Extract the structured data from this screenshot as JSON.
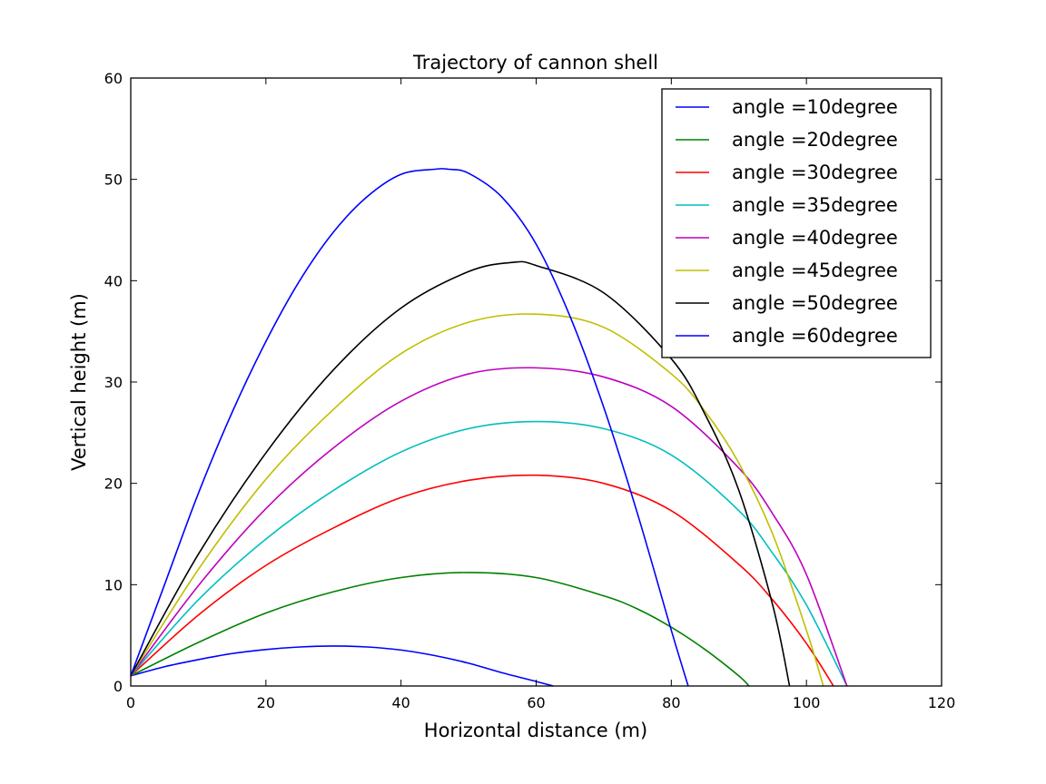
{
  "chart_data": {
    "type": "line",
    "title": "Trajectory of cannon shell",
    "xlabel": "Horizontal distance (m)",
    "ylabel": "Vertical height (m)",
    "xlim": [
      0,
      120
    ],
    "ylim": [
      0,
      60
    ],
    "xticks": [
      "0",
      "20",
      "40",
      "60",
      "80",
      "100",
      "120"
    ],
    "yticks": [
      "0",
      "10",
      "20",
      "30",
      "40",
      "50",
      "60"
    ],
    "grid": false,
    "legend_position": "top-right",
    "series": [
      {
        "name": "angle =10degree",
        "color": "#0000ff",
        "x": [
          0,
          5,
          10,
          15,
          20,
          25,
          30,
          35,
          40,
          45,
          50,
          55,
          60,
          62.5
        ],
        "y": [
          1.0,
          1.9,
          2.6,
          3.2,
          3.6,
          3.85,
          3.95,
          3.85,
          3.55,
          3.0,
          2.25,
          1.3,
          0.45,
          0
        ]
      },
      {
        "name": "angle =20degree",
        "color": "#008000",
        "x": [
          0,
          10,
          20,
          30,
          40,
          50,
          60,
          70,
          75,
          80,
          85,
          90,
          91.5
        ],
        "y": [
          1.0,
          4.3,
          7.2,
          9.3,
          10.7,
          11.2,
          10.7,
          8.9,
          7.6,
          5.8,
          3.6,
          1.0,
          0
        ]
      },
      {
        "name": "angle =30degree",
        "color": "#ff0000",
        "x": [
          0,
          10,
          20,
          30,
          40,
          50,
          60,
          70,
          80,
          90,
          95,
          100,
          104
        ],
        "y": [
          1.0,
          7.0,
          11.9,
          15.6,
          18.6,
          20.3,
          20.8,
          20.0,
          17.3,
          12.0,
          8.5,
          4.2,
          0
        ]
      },
      {
        "name": "angle =35degree",
        "color": "#00bfbf",
        "x": [
          0,
          10,
          20,
          30,
          40,
          50,
          60,
          70,
          80,
          90,
          95,
          100,
          106
        ],
        "y": [
          1.0,
          8.5,
          14.5,
          19.3,
          23.1,
          25.4,
          26.1,
          25.4,
          22.8,
          17.3,
          13.1,
          8.0,
          0
        ]
      },
      {
        "name": "angle =40degree",
        "color": "#bf00bf",
        "x": [
          0,
          10,
          20,
          30,
          40,
          50,
          60,
          70,
          80,
          90,
          95,
          100,
          106
        ],
        "y": [
          1.0,
          9.9,
          17.5,
          23.5,
          28.1,
          30.8,
          31.4,
          30.5,
          27.6,
          21.5,
          17.0,
          11.0,
          0
        ]
      },
      {
        "name": "angle =45degree",
        "color": "#bfbf00",
        "x": [
          0,
          10,
          20,
          30,
          40,
          50,
          60,
          70,
          80,
          85,
          90,
          95,
          100,
          102.5
        ],
        "y": [
          1.0,
          11.5,
          20.4,
          27.3,
          32.8,
          35.9,
          36.7,
          35.4,
          30.8,
          27.1,
          22.0,
          15.0,
          5.5,
          0
        ]
      },
      {
        "name": "angle =50degree",
        "color": "#000000",
        "x": [
          0,
          10,
          20,
          30,
          40,
          50,
          56.5,
          60,
          70,
          80,
          85,
          90,
          95,
          97.5
        ],
        "y": [
          1.0,
          13.0,
          23.0,
          31.2,
          37.3,
          40.9,
          41.8,
          41.5,
          38.8,
          32.3,
          26.8,
          19.3,
          8.0,
          0
        ]
      },
      {
        "name": "angle =60degree",
        "color": "#0000ff",
        "x": [
          0,
          5,
          10,
          15,
          20,
          25,
          30,
          35,
          40,
          45,
          47,
          50,
          55,
          60,
          65,
          70,
          75,
          80,
          82.5
        ],
        "y": [
          1.0,
          10.0,
          19.0,
          27.0,
          34.0,
          40.0,
          44.8,
          48.3,
          50.5,
          51.0,
          51.0,
          50.6,
          48.2,
          43.6,
          36.5,
          27.5,
          17.0,
          5.5,
          0
        ]
      }
    ]
  }
}
